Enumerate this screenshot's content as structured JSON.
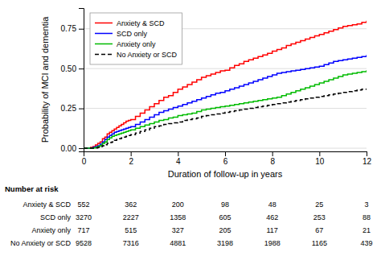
{
  "chart_data": {
    "type": "step",
    "xlabel": "Duration of follow-up in years",
    "ylabel": "Probability of MCI and dementia",
    "xlim": [
      0,
      12
    ],
    "ylim": [
      -0.02,
      0.88
    ],
    "xticks": [
      0,
      2,
      4,
      6,
      8,
      10,
      12
    ],
    "yticks": [
      {
        "value": 0.0,
        "label": "0.00"
      },
      0.25,
      {
        "value": 0.5,
        "label": "0.50"
      },
      0.75
    ],
    "grid": "y",
    "legend": "upper-left",
    "x": [
      0.0,
      0.1,
      0.2,
      0.3,
      0.4,
      0.5,
      0.6,
      0.7,
      0.8,
      0.9,
      1.0,
      1.1,
      1.2,
      1.3,
      1.4,
      1.5,
      1.6,
      1.7,
      1.8,
      1.9,
      2.0,
      2.2,
      2.4,
      2.6,
      2.8,
      3.0,
      3.2,
      3.4,
      3.6,
      3.8,
      4.0,
      4.2,
      4.4,
      4.6,
      4.8,
      5.0,
      5.2,
      5.4,
      5.6,
      5.8,
      6.0,
      6.2,
      6.4,
      6.6,
      6.8,
      7.0,
      7.2,
      7.4,
      7.6,
      7.8,
      8.0,
      8.2,
      8.4,
      8.6,
      8.8,
      9.0,
      9.2,
      9.4,
      9.6,
      9.8,
      10.0,
      10.2,
      10.4,
      10.6,
      10.8,
      11.0,
      11.2,
      11.4,
      11.6,
      11.8,
      12.0
    ],
    "series": [
      {
        "name": "Anxiety & SCD",
        "color": "#FF0000",
        "line_style": "solid",
        "values": [
          0.0,
          0.0,
          0.0,
          0.005,
          0.01,
          0.02,
          0.03,
          0.04,
          0.06,
          0.07,
          0.09,
          0.1,
          0.11,
          0.12,
          0.13,
          0.14,
          0.15,
          0.16,
          0.17,
          0.175,
          0.18,
          0.2,
          0.22,
          0.24,
          0.26,
          0.28,
          0.3,
          0.32,
          0.33,
          0.35,
          0.37,
          0.385,
          0.4,
          0.415,
          0.43,
          0.445,
          0.455,
          0.465,
          0.475,
          0.485,
          0.49,
          0.505,
          0.52,
          0.53,
          0.545,
          0.555,
          0.565,
          0.575,
          0.585,
          0.595,
          0.61,
          0.62,
          0.63,
          0.645,
          0.655,
          0.665,
          0.675,
          0.685,
          0.695,
          0.705,
          0.715,
          0.725,
          0.735,
          0.745,
          0.755,
          0.765,
          0.77,
          0.775,
          0.78,
          0.79,
          0.8
        ]
      },
      {
        "name": "SCD only",
        "color": "#0000FF",
        "line_style": "solid",
        "values": [
          0.0,
          0.0,
          0.0,
          0.002,
          0.005,
          0.01,
          0.015,
          0.025,
          0.04,
          0.055,
          0.07,
          0.08,
          0.09,
          0.1,
          0.105,
          0.11,
          0.115,
          0.12,
          0.125,
          0.13,
          0.135,
          0.15,
          0.165,
          0.18,
          0.195,
          0.21,
          0.225,
          0.235,
          0.245,
          0.255,
          0.265,
          0.275,
          0.285,
          0.295,
          0.305,
          0.315,
          0.325,
          0.335,
          0.345,
          0.35,
          0.36,
          0.37,
          0.38,
          0.39,
          0.4,
          0.41,
          0.42,
          0.43,
          0.44,
          0.45,
          0.46,
          0.47,
          0.475,
          0.48,
          0.485,
          0.49,
          0.495,
          0.5,
          0.505,
          0.51,
          0.515,
          0.525,
          0.535,
          0.545,
          0.55,
          0.555,
          0.56,
          0.565,
          0.57,
          0.575,
          0.585
        ]
      },
      {
        "name": "Anxiety only",
        "color": "#00BB00",
        "line_style": "solid",
        "values": [
          0.0,
          0.0,
          0.0,
          0.0,
          0.002,
          0.005,
          0.01,
          0.018,
          0.03,
          0.04,
          0.055,
          0.065,
          0.075,
          0.08,
          0.085,
          0.09,
          0.095,
          0.1,
          0.105,
          0.11,
          0.115,
          0.125,
          0.135,
          0.145,
          0.155,
          0.165,
          0.175,
          0.18,
          0.19,
          0.195,
          0.205,
          0.21,
          0.215,
          0.22,
          0.23,
          0.24,
          0.245,
          0.25,
          0.255,
          0.26,
          0.265,
          0.27,
          0.275,
          0.28,
          0.285,
          0.29,
          0.295,
          0.3,
          0.305,
          0.31,
          0.315,
          0.32,
          0.33,
          0.34,
          0.35,
          0.36,
          0.37,
          0.38,
          0.39,
          0.4,
          0.41,
          0.42,
          0.43,
          0.44,
          0.45,
          0.46,
          0.465,
          0.47,
          0.475,
          0.48,
          0.49
        ]
      },
      {
        "name": "No Anxiety or SCD",
        "color": "#000000",
        "line_style": "dashed",
        "values": [
          0.0,
          0.0,
          0.0,
          0.0,
          0.0,
          0.002,
          0.005,
          0.01,
          0.015,
          0.022,
          0.03,
          0.035,
          0.04,
          0.05,
          0.055,
          0.06,
          0.065,
          0.07,
          0.075,
          0.08,
          0.085,
          0.095,
          0.105,
          0.115,
          0.125,
          0.135,
          0.14,
          0.15,
          0.155,
          0.16,
          0.165,
          0.175,
          0.18,
          0.185,
          0.19,
          0.2,
          0.205,
          0.21,
          0.215,
          0.22,
          0.225,
          0.23,
          0.235,
          0.24,
          0.245,
          0.25,
          0.255,
          0.26,
          0.265,
          0.27,
          0.275,
          0.28,
          0.285,
          0.29,
          0.295,
          0.3,
          0.305,
          0.31,
          0.315,
          0.32,
          0.325,
          0.33,
          0.335,
          0.34,
          0.345,
          0.35,
          0.355,
          0.36,
          0.365,
          0.37,
          0.375
        ]
      }
    ],
    "risk_table": {
      "title": "Number at risk",
      "timepoints": [
        0,
        2,
        4,
        6,
        8,
        10,
        12
      ],
      "groups": [
        "Anxiety & SCD",
        "SCD only",
        "Anxiety only",
        "No Anxiety or SCD"
      ],
      "values": [
        [
          552,
          362,
          200,
          98,
          48,
          25,
          3
        ],
        [
          3270,
          2227,
          1358,
          605,
          462,
          253,
          88
        ],
        [
          717,
          515,
          327,
          205,
          117,
          67,
          21
        ],
        [
          9528,
          7316,
          4881,
          3198,
          1988,
          1165,
          439
        ]
      ]
    }
  }
}
